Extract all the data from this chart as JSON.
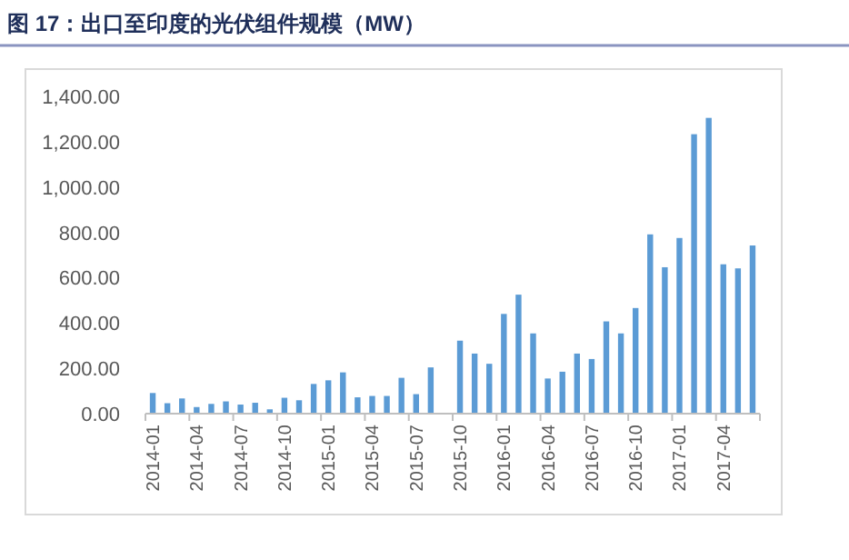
{
  "chart_data": {
    "type": "bar",
    "title": "图 17：出口至印度的光伏组件规模（MW）",
    "categories": [
      "2014-01",
      null,
      null,
      "2014-04",
      null,
      null,
      "2014-07",
      null,
      null,
      "2014-10",
      null,
      null,
      "2015-01",
      null,
      null,
      "2015-04",
      null,
      null,
      "2015-07",
      null,
      null,
      "2015-10",
      null,
      null,
      "2016-01",
      null,
      null,
      "2016-04",
      null,
      null,
      "2016-07",
      null,
      null,
      "2016-10",
      null,
      null,
      "2017-01",
      null,
      null,
      "2017-04",
      null,
      null
    ],
    "values": [
      91,
      46,
      67,
      29,
      43,
      54,
      40,
      48,
      19,
      70,
      59,
      131,
      147,
      182,
      72,
      78,
      78,
      158,
      86,
      204,
      null,
      322,
      265,
      220,
      440,
      525,
      354,
      155,
      185,
      265,
      241,
      407,
      354,
      466,
      791,
      646,
      775,
      1233,
      1305,
      659,
      641,
      742
    ],
    "color": "#5b9bd5",
    "ylim": [
      0,
      1400
    ],
    "yticks": [
      {
        "value": 0,
        "label": "0.00"
      },
      {
        "value": 200,
        "label": "200.00"
      },
      {
        "value": 400,
        "label": "400.00"
      },
      {
        "value": 600,
        "label": "600.00"
      },
      {
        "value": 800,
        "label": "800.00"
      },
      {
        "value": 1000,
        "label": "1,000.00"
      },
      {
        "value": 1200,
        "label": "1,200.00"
      },
      {
        "value": 1400,
        "label": "1,400.00"
      }
    ],
    "grid": false
  }
}
